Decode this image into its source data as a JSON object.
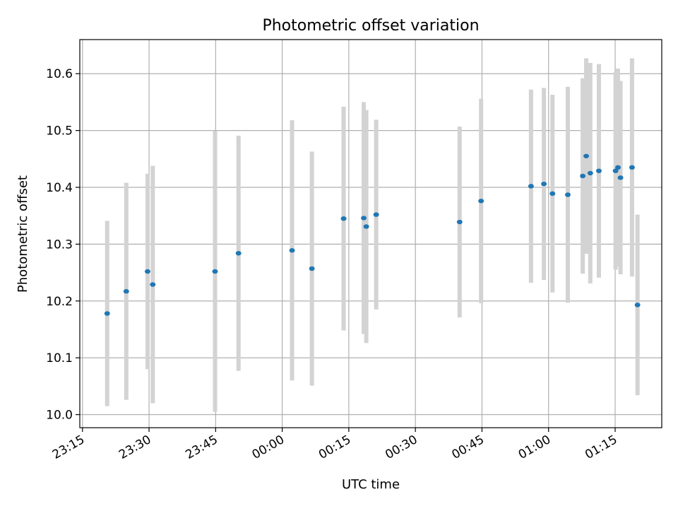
{
  "chart_data": {
    "type": "scatter",
    "title": "Photometric offset variation",
    "xlabel": "UTC time",
    "ylabel": "Photometric offset",
    "x_ticks": [
      "23:15",
      "23:30",
      "23:45",
      "00:00",
      "00:15",
      "00:30",
      "00:45",
      "01:00",
      "01:15"
    ],
    "y_ticks": [
      "10.0",
      "10.1",
      "10.2",
      "10.3",
      "10.4",
      "10.5",
      "10.6"
    ],
    "xlim": [
      "23:14:24",
      "01:25:30"
    ],
    "ylim": [
      9.977,
      10.66
    ],
    "grid": true,
    "point_color": "#1f77b4",
    "errorbar_color": "#d3d3d3",
    "points": [
      {
        "x": "23:20:34",
        "y": 10.178,
        "yerr": 0.163
      },
      {
        "x": "23:24:52",
        "y": 10.217,
        "yerr": 0.191
      },
      {
        "x": "23:29:40",
        "y": 10.252,
        "yerr": 0.172
      },
      {
        "x": "23:30:50",
        "y": 10.229,
        "yerr": 0.209
      },
      {
        "x": "23:44:52",
        "y": 10.252,
        "yerr": 0.247
      },
      {
        "x": "23:50:09",
        "y": 10.284,
        "yerr": 0.207
      },
      {
        "x": "00:02:13",
        "y": 10.289,
        "yerr": 0.229
      },
      {
        "x": "00:06:41",
        "y": 10.257,
        "yerr": 0.206
      },
      {
        "x": "00:13:50",
        "y": 10.345,
        "yerr": 0.197
      },
      {
        "x": "00:18:22",
        "y": 10.346,
        "yerr": 0.204
      },
      {
        "x": "00:18:56",
        "y": 10.331,
        "yerr": 0.205
      },
      {
        "x": "00:21:10",
        "y": 10.352,
        "yerr": 0.167
      },
      {
        "x": "00:39:58",
        "y": 10.339,
        "yerr": 0.168
      },
      {
        "x": "00:44:48",
        "y": 10.376,
        "yerr": 0.18
      },
      {
        "x": "00:56:03",
        "y": 10.402,
        "yerr": 0.17
      },
      {
        "x": "00:58:57",
        "y": 10.406,
        "yerr": 0.169
      },
      {
        "x": "01:00:53",
        "y": 10.389,
        "yerr": 0.174
      },
      {
        "x": "01:04:20",
        "y": 10.387,
        "yerr": 0.19
      },
      {
        "x": "01:07:42",
        "y": 10.42,
        "yerr": 0.172
      },
      {
        "x": "01:08:29",
        "y": 10.455,
        "yerr": 0.172
      },
      {
        "x": "01:09:24",
        "y": 10.425,
        "yerr": 0.194
      },
      {
        "x": "01:11:20",
        "y": 10.429,
        "yerr": 0.188
      },
      {
        "x": "01:15:06",
        "y": 10.429,
        "yerr": 0.174
      },
      {
        "x": "01:15:38",
        "y": 10.435,
        "yerr": 0.174
      },
      {
        "x": "01:16:12",
        "y": 10.417,
        "yerr": 0.17
      },
      {
        "x": "01:18:48",
        "y": 10.435,
        "yerr": 0.192
      },
      {
        "x": "01:20:02",
        "y": 10.193,
        "yerr": 0.159
      }
    ]
  }
}
